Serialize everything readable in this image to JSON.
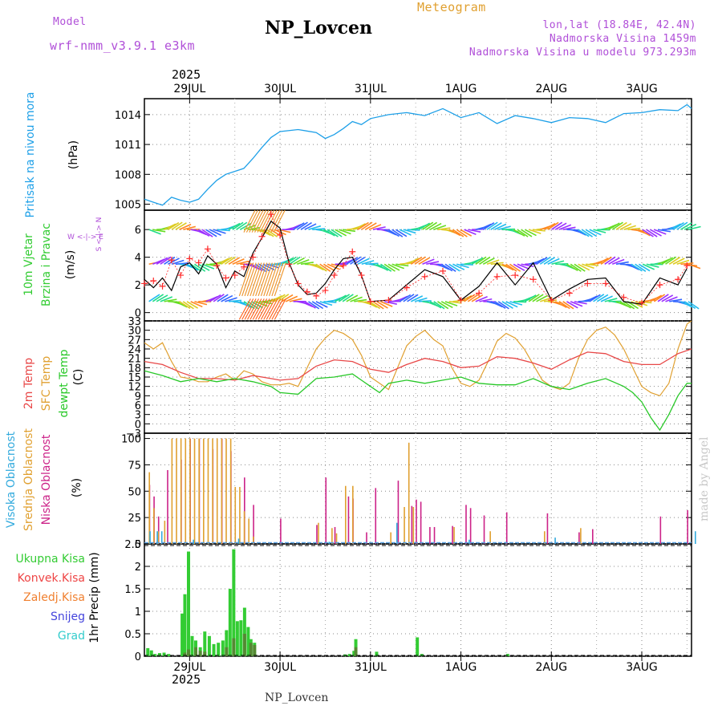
{
  "header": {
    "model_label": "Model",
    "model_name": "wrf-nmm_v3.9.1 e3km",
    "station_title": "NP_Lovcen",
    "meteogram_label": "Meteogram",
    "lonlat": "lon,lat (18.84E, 42.4N)",
    "elevation": "Nadmorska Visina 1459m",
    "model_elevation": "Nadmorska Visina u modelu 973.293m",
    "year": "2025",
    "footer_station": "NP_Lovcen",
    "watermark": "made by Angel"
  },
  "colors": {
    "pressure": "#1ea0e8",
    "wind_speed": "#000000",
    "wind_gust": "#ff2a2a",
    "temp_2m": "#e84848",
    "temp_sfc": "#e0a030",
    "dewpoint": "#28c828",
    "cloud_high": "#33aadd",
    "cloud_mid": "#e0a030",
    "cloud_low": "#cc2288",
    "precip_total": "#33cc33",
    "precip_conv": "#ee4444",
    "precip_frozen": "#f08030",
    "snow": "#4444dd",
    "hail": "#33cccc",
    "model_label": "#b04fd8",
    "meteogram_label": "#e0a030"
  },
  "chart_data": [
    {
      "type": "line",
      "panel": "pressure",
      "title": "Pritisak na nivou mora",
      "ylabel": "(hPa)",
      "ylim": [
        1004.4,
        1015.6
      ],
      "yticks": [
        1005,
        1008,
        1011,
        1014
      ],
      "xticks": [
        "29JUL",
        "30JUL",
        "31JUL",
        "1AUG",
        "2AUG",
        "3AUG"
      ],
      "x_day_start": 28.5,
      "x_day_end": 34.55,
      "series": [
        {
          "name": "Pritisak",
          "x": [
            28.5,
            28.6,
            28.7,
            28.8,
            28.9,
            29.0,
            29.1,
            29.2,
            29.3,
            29.4,
            29.5,
            29.6,
            29.7,
            29.8,
            29.9,
            30.0,
            30.2,
            30.4,
            30.5,
            30.6,
            30.7,
            30.8,
            30.9,
            31.0,
            31.2,
            31.4,
            31.6,
            31.8,
            32.0,
            32.2,
            32.4,
            32.6,
            32.8,
            33.0,
            33.2,
            33.4,
            33.6,
            33.8,
            34.0,
            34.2,
            34.4,
            34.5,
            34.55
          ],
          "y": [
            1005.5,
            1005.2,
            1004.9,
            1005.7,
            1005.4,
            1005.2,
            1005.5,
            1006.5,
            1007.4,
            1008.0,
            1008.3,
            1008.6,
            1009.6,
            1010.7,
            1011.7,
            1012.3,
            1012.5,
            1012.2,
            1011.6,
            1012.0,
            1012.6,
            1013.3,
            1013.0,
            1013.6,
            1014.0,
            1014.2,
            1013.9,
            1014.6,
            1013.7,
            1014.2,
            1013.1,
            1013.9,
            1013.6,
            1013.2,
            1013.7,
            1013.6,
            1013.2,
            1014.1,
            1014.2,
            1014.5,
            1014.4,
            1015.0,
            1014.6
          ]
        }
      ]
    },
    {
      "type": "line",
      "panel": "wind",
      "title": "10m Vjetar",
      "subtitle": "Brzina i Pravac",
      "ylabel": "(m/s)",
      "ylim": [
        -0.6,
        7.4
      ],
      "yticks": [
        0,
        2,
        4,
        6
      ],
      "compass_label": "W <-|-> E",
      "compass_vertical": "S <-|-> N",
      "series": [
        {
          "name": "Brzina",
          "x": [
            28.5,
            28.6,
            28.7,
            28.8,
            28.9,
            29.0,
            29.1,
            29.2,
            29.3,
            29.4,
            29.5,
            29.6,
            29.7,
            29.8,
            29.9,
            30.0,
            30.1,
            30.2,
            30.3,
            30.4,
            30.5,
            30.6,
            30.7,
            30.8,
            30.9,
            31.0,
            31.2,
            31.4,
            31.6,
            31.8,
            32.0,
            32.2,
            32.4,
            32.6,
            32.8,
            33.0,
            33.2,
            33.4,
            33.6,
            33.8,
            34.0,
            34.2,
            34.4,
            34.5
          ],
          "y": [
            2.4,
            1.8,
            2.5,
            1.6,
            3.3,
            3.6,
            2.8,
            4.1,
            3.5,
            1.8,
            3.0,
            2.6,
            4.3,
            5.4,
            6.6,
            6.1,
            3.6,
            2.0,
            1.3,
            1.4,
            2.1,
            3.1,
            3.9,
            4.0,
            2.7,
            0.8,
            0.9,
            2.0,
            3.1,
            2.6,
            0.9,
            1.9,
            3.6,
            2.0,
            3.6,
            0.9,
            1.7,
            2.4,
            2.5,
            0.8,
            0.6,
            2.5,
            2.0,
            3.2
          ]
        },
        {
          "name": "Udari",
          "x": [
            28.5,
            28.6,
            28.7,
            28.8,
            28.9,
            29.0,
            29.1,
            29.2,
            29.3,
            29.4,
            29.5,
            29.6,
            29.7,
            29.8,
            29.9,
            30.0,
            30.1,
            30.2,
            30.3,
            30.4,
            30.5,
            30.6,
            30.7,
            30.8,
            30.9,
            31.0,
            31.2,
            31.4,
            31.6,
            31.8,
            32.0,
            32.2,
            32.4,
            32.6,
            32.8,
            33.0,
            33.2,
            33.4,
            33.6,
            33.8,
            34.0,
            34.2,
            34.4,
            34.5
          ],
          "y": [
            2.1,
            2.3,
            1.9,
            3.8,
            2.7,
            3.9,
            3.6,
            4.6,
            3.4,
            2.5,
            2.7,
            3.3,
            4.0,
            5.5,
            7.1,
            5.6,
            3.5,
            2.1,
            1.5,
            1.2,
            1.6,
            2.7,
            3.4,
            4.4,
            2.7,
            0.8,
            0.9,
            1.8,
            2.6,
            3.0,
            0.9,
            1.4,
            2.6,
            2.7,
            2.4,
            0.9,
            1.4,
            2.1,
            2.1,
            1.1,
            0.7,
            2.0,
            2.4,
            3.4
          ]
        }
      ]
    },
    {
      "type": "line",
      "panel": "temperature",
      "ylabel": "(C)",
      "ylim": [
        -3.0,
        33.0
      ],
      "yticks": [
        -3,
        0,
        3,
        6,
        9,
        12,
        15,
        18,
        21,
        24,
        27,
        30,
        33
      ],
      "series": [
        {
          "name": "2m Temp",
          "x": [
            28.5,
            28.7,
            28.9,
            29.1,
            29.3,
            29.5,
            29.7,
            29.9,
            30.0,
            30.2,
            30.4,
            30.6,
            30.8,
            31.0,
            31.2,
            31.4,
            31.6,
            31.8,
            32.0,
            32.2,
            32.4,
            32.6,
            32.8,
            33.0,
            33.2,
            33.4,
            33.6,
            33.8,
            34.0,
            34.2,
            34.4,
            34.55
          ],
          "y": [
            20.0,
            19.0,
            16.5,
            14.5,
            14.5,
            14.0,
            15.5,
            14.5,
            14.0,
            14.5,
            18.5,
            20.5,
            20.0,
            17.5,
            16.5,
            19.0,
            21.0,
            20.0,
            18.0,
            18.5,
            21.5,
            21.0,
            19.5,
            17.5,
            20.5,
            23.0,
            22.5,
            20.0,
            19.0,
            19.0,
            22.5,
            24.0
          ]
        },
        {
          "name": "SFC Temp",
          "x": [
            28.5,
            28.6,
            28.7,
            28.8,
            28.9,
            29.0,
            29.1,
            29.2,
            29.3,
            29.4,
            29.5,
            29.6,
            29.7,
            29.8,
            29.9,
            30.0,
            30.1,
            30.2,
            30.3,
            30.4,
            30.5,
            30.6,
            30.7,
            30.8,
            30.9,
            31.0,
            31.1,
            31.2,
            31.3,
            31.4,
            31.5,
            31.6,
            31.7,
            31.8,
            31.9,
            32.0,
            32.1,
            32.2,
            32.3,
            32.4,
            32.5,
            32.6,
            32.7,
            32.8,
            32.9,
            33.0,
            33.1,
            33.2,
            33.3,
            33.4,
            33.5,
            33.6,
            33.7,
            33.8,
            33.9,
            34.0,
            34.1,
            34.2,
            34.3,
            34.4,
            34.5,
            34.55
          ],
          "y": [
            26.0,
            24.0,
            26.0,
            20.0,
            15.0,
            14.5,
            13.5,
            13.5,
            15.0,
            16.0,
            14.0,
            17.0,
            16.0,
            13.5,
            12.5,
            12.5,
            13.0,
            12.0,
            18.0,
            24.0,
            27.5,
            30.0,
            29.0,
            27.0,
            22.0,
            15.0,
            13.0,
            11.0,
            18.0,
            25.0,
            28.0,
            30.0,
            27.0,
            25.0,
            18.0,
            13.0,
            12.0,
            14.0,
            20.0,
            26.5,
            29.0,
            27.5,
            24.0,
            19.0,
            14.0,
            12.0,
            11.0,
            13.0,
            21.0,
            27.0,
            30.0,
            31.0,
            28.5,
            24.0,
            18.0,
            12.0,
            10.0,
            9.0,
            13.0,
            24.0,
            32.0,
            33.0
          ]
        },
        {
          "name": "dewpt Temp",
          "x": [
            28.5,
            28.7,
            28.9,
            29.1,
            29.3,
            29.5,
            29.7,
            29.9,
            30.0,
            30.2,
            30.4,
            30.6,
            30.8,
            30.9,
            31.0,
            31.1,
            31.2,
            31.4,
            31.6,
            31.8,
            32.0,
            32.2,
            32.4,
            32.6,
            32.8,
            33.0,
            33.2,
            33.4,
            33.6,
            33.8,
            33.9,
            34.0,
            34.1,
            34.2,
            34.3,
            34.4,
            34.5,
            34.55
          ],
          "y": [
            17.0,
            15.5,
            13.5,
            14.5,
            13.5,
            14.5,
            13.5,
            12.0,
            10.0,
            9.5,
            14.5,
            15.0,
            16.0,
            14.0,
            12.0,
            10.0,
            13.0,
            14.0,
            13.0,
            14.0,
            15.0,
            13.0,
            12.5,
            12.5,
            14.5,
            12.0,
            11.0,
            13.0,
            14.5,
            12.0,
            10.0,
            7.0,
            2.0,
            -2.0,
            3.0,
            9.0,
            13.0,
            13.0
          ]
        }
      ]
    },
    {
      "type": "bar",
      "panel": "cloud",
      "ylabel": "(%)",
      "ylim": [
        0,
        105
      ],
      "yticks": [
        0,
        25,
        50,
        75,
        100
      ],
      "labels": [
        "Visoka Oblacnost",
        "Srednja Oblacnost",
        "Niska Oblacnost"
      ],
      "series": [
        {
          "name": "Niska Oblacnost",
          "x": [
            28.55,
            28.6,
            28.65,
            28.75,
            28.9,
            29.0,
            29.1,
            29.25,
            29.35,
            29.45,
            29.6,
            29.7,
            30.0,
            30.4,
            30.5,
            30.6,
            30.75,
            30.8,
            30.95,
            31.05,
            31.3,
            31.45,
            31.5,
            31.55,
            31.65,
            31.7,
            31.9,
            32.05,
            32.1,
            32.25,
            32.5,
            32.95,
            33.3,
            33.45,
            34.2,
            34.5
          ],
          "y": [
            56,
            45,
            26,
            70,
            80,
            100,
            100,
            90,
            100,
            88,
            63,
            37,
            24,
            18,
            63,
            16,
            45,
            43,
            11,
            53,
            60,
            36,
            42,
            40,
            16,
            16,
            17,
            37,
            34,
            27,
            30,
            29,
            11,
            14,
            26,
            32
          ]
        },
        {
          "name": "Srednja Oblacnost",
          "x": [
            28.53,
            28.58,
            28.63,
            28.7,
            28.78,
            28.83,
            28.88,
            28.93,
            28.98,
            29.03,
            29.08,
            29.13,
            29.18,
            29.23,
            29.28,
            29.33,
            29.38,
            29.43,
            29.48,
            29.53,
            29.58,
            29.63,
            29.68,
            30.4,
            30.55,
            30.6,
            30.7,
            30.78,
            31.2,
            31.35,
            31.4,
            31.45,
            31.9,
            32.3,
            32.9,
            33.3
          ],
          "y": [
            68,
            34,
            12,
            22,
            100,
            100,
            100,
            100,
            100,
            100,
            100,
            100,
            100,
            100,
            100,
            100,
            100,
            100,
            54,
            54,
            31,
            24,
            7,
            20,
            15,
            10,
            55,
            55,
            11,
            35,
            96,
            35,
            16,
            12,
            12,
            15
          ]
        },
        {
          "name": "Visoka Oblacnost",
          "x": [
            28.52,
            28.6,
            28.65,
            29.0,
            29.5,
            30.5,
            31.25,
            32.05,
            33.0,
            34.55
          ],
          "y": [
            12,
            12,
            12,
            4,
            5,
            2,
            20,
            4,
            6,
            12
          ]
        }
      ]
    },
    {
      "type": "bar",
      "panel": "precip",
      "ylabel": "1hr Precip (mm)",
      "ylim": [
        0,
        2.5
      ],
      "yticks": [
        0,
        0.5,
        1,
        1.5,
        2,
        2.5
      ],
      "labels": [
        "Ukupna Kisa",
        "Konvek.Kisa",
        "Zaledj.Kisa",
        "Snijeg",
        "Grad"
      ],
      "series": [
        {
          "name": "Ukupna Kisa",
          "x": [
            28.52,
            28.56,
            28.6,
            28.65,
            28.7,
            28.75,
            28.9,
            28.93,
            28.97,
            29.01,
            29.05,
            29.1,
            29.15,
            29.2,
            29.25,
            29.3,
            29.35,
            29.39,
            29.43,
            29.47,
            29.51,
            29.55,
            29.59,
            29.63,
            29.66,
            29.7,
            30.7,
            30.75,
            30.8,
            30.82,
            31.05,
            31.5,
            31.55,
            32.5
          ],
          "y": [
            0.18,
            0.13,
            0.05,
            0.07,
            0.08,
            0.05,
            0.95,
            1.38,
            2.33,
            0.45,
            0.35,
            0.2,
            0.55,
            0.45,
            0.27,
            0.3,
            0.35,
            0.58,
            1.5,
            2.38,
            0.78,
            0.8,
            1.08,
            0.65,
            0.38,
            0.3,
            0.04,
            0.05,
            0.12,
            0.38,
            0.1,
            0.42,
            0.05,
            0.05
          ]
        },
        {
          "name": "Konvek.Kisa",
          "x": [
            28.93,
            28.97,
            29.05,
            29.1,
            29.15,
            29.39,
            29.47,
            29.59,
            29.66,
            29.7,
            30.82
          ],
          "y": [
            0.08,
            0.15,
            0.2,
            0.12,
            0.1,
            0.2,
            0.4,
            0.5,
            0.3,
            0.25,
            0.2
          ]
        }
      ]
    }
  ]
}
